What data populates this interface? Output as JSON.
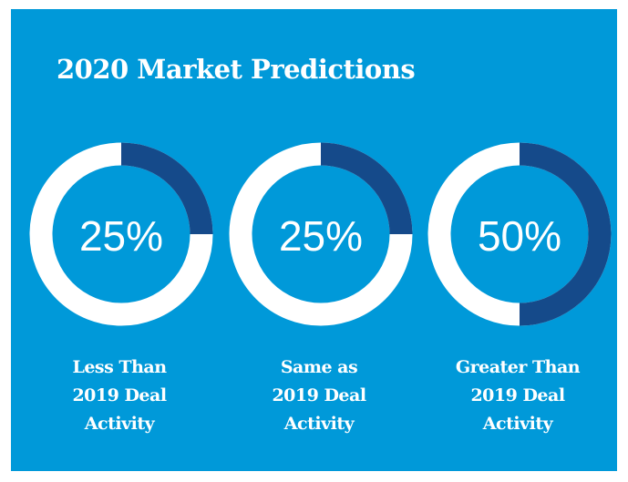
{
  "chart_data": {
    "type": "donut",
    "title": "2020 Market Predictions",
    "categories": [
      [
        "Less Than",
        "2019 Deal",
        "Activity"
      ],
      [
        "Same as",
        "2019 Deal",
        "Activity"
      ],
      [
        "Greater Than",
        "2019 Deal",
        "Activity"
      ]
    ],
    "values": [
      25,
      25,
      50
    ],
    "value_labels": [
      "25%",
      "25%",
      "50%"
    ],
    "ylim": [
      0,
      100
    ],
    "color": "#154a8a",
    "track_color": "#ffffff",
    "background": "#0099d9"
  }
}
